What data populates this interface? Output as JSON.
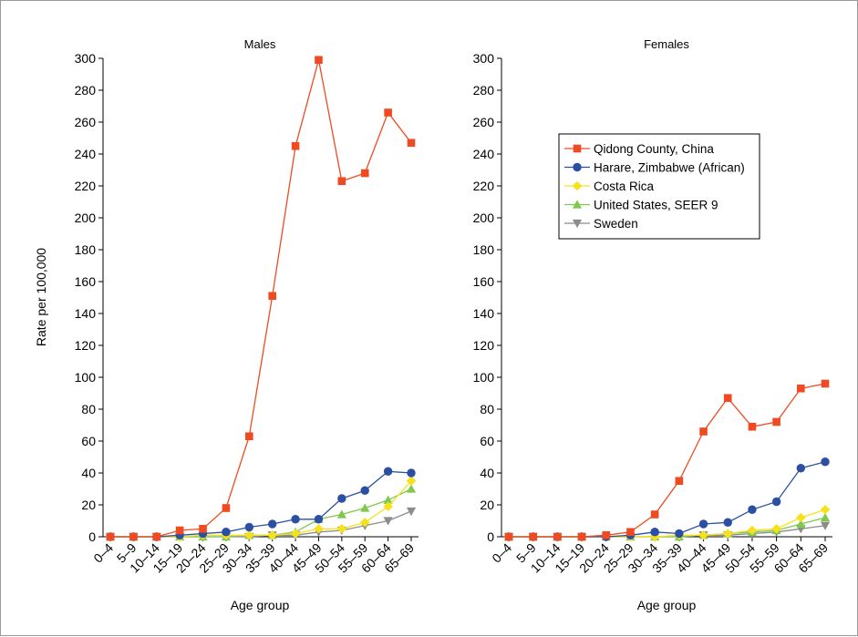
{
  "chart_data": [
    {
      "type": "line",
      "title": "Males",
      "xlabel": "Age group",
      "ylabel": "Rate per 100,000",
      "ylim": [
        0,
        300
      ],
      "yticks": [
        0,
        20,
        40,
        60,
        80,
        100,
        120,
        140,
        160,
        180,
        200,
        220,
        240,
        260,
        280,
        300
      ],
      "grid": false,
      "categories": [
        "0–4",
        "5–9",
        "10–14",
        "15–19",
        "20–24",
        "25–29",
        "30–34",
        "35–39",
        "40–44",
        "45–49",
        "50–54",
        "55–59",
        "60–64",
        "65–69"
      ],
      "series": [
        {
          "name": "Qidong County, China",
          "color": "#f04a23",
          "marker": "square",
          "values": [
            0,
            0,
            0,
            4,
            5,
            18,
            63,
            151,
            245,
            299,
            223,
            228,
            266,
            247
          ]
        },
        {
          "name": "Harare, Zimbabwe (African)",
          "color": "#2a4fa3",
          "marker": "circle",
          "values": [
            0,
            0,
            0,
            1,
            2,
            3,
            6,
            8,
            11,
            11,
            24,
            29,
            41,
            40
          ]
        },
        {
          "name": "Costa Rica",
          "color": "#f6e21c",
          "marker": "diamond",
          "values": [
            0,
            0,
            0,
            0,
            1,
            1,
            1,
            1,
            2,
            5,
            5,
            9,
            19,
            35
          ]
        },
        {
          "name": "United States, SEER 9",
          "color": "#7ec84f",
          "marker": "triangle-up",
          "values": [
            0,
            0,
            0,
            0,
            0,
            0,
            1,
            1,
            3,
            11,
            14,
            18,
            23,
            30
          ]
        },
        {
          "name": "Sweden",
          "color": "#8c8c8c",
          "marker": "triangle-down",
          "values": [
            0,
            0,
            0,
            0,
            0,
            0,
            0,
            1,
            1,
            3,
            4,
            7,
            10,
            16
          ]
        }
      ]
    },
    {
      "type": "line",
      "title": "Females",
      "xlabel": "Age group",
      "ylabel": "",
      "ylim": [
        0,
        300
      ],
      "yticks": [
        0,
        20,
        40,
        60,
        80,
        100,
        120,
        140,
        160,
        180,
        200,
        220,
        240,
        260,
        280,
        300
      ],
      "grid": false,
      "legend": "top-right",
      "categories": [
        "0–4",
        "5–9",
        "10–14",
        "15–19",
        "20–24",
        "25–29",
        "30–34",
        "35–39",
        "40–44",
        "45–49",
        "50–54",
        "55–59",
        "60–64",
        "65–69"
      ],
      "series": [
        {
          "name": "Qidong County, China",
          "color": "#f04a23",
          "marker": "square",
          "values": [
            0,
            0,
            0,
            0,
            1,
            3,
            14,
            35,
            66,
            87,
            69,
            72,
            93,
            96
          ]
        },
        {
          "name": "Harare, Zimbabwe (African)",
          "color": "#2a4fa3",
          "marker": "circle",
          "values": [
            0,
            0,
            0,
            0,
            0,
            1,
            3,
            2,
            8,
            9,
            17,
            22,
            43,
            47
          ]
        },
        {
          "name": "Costa Rica",
          "color": "#f6e21c",
          "marker": "diamond",
          "values": [
            0,
            0,
            0,
            0,
            0,
            0,
            0,
            1,
            1,
            2,
            4,
            5,
            12,
            17
          ]
        },
        {
          "name": "United States, SEER 9",
          "color": "#7ec84f",
          "marker": "triangle-up",
          "values": [
            0,
            0,
            0,
            0,
            0,
            0,
            0,
            0,
            1,
            2,
            3,
            4,
            8,
            12
          ]
        },
        {
          "name": "Sweden",
          "color": "#8c8c8c",
          "marker": "triangle-down",
          "values": [
            0,
            0,
            0,
            0,
            0,
            0,
            0,
            0,
            1,
            1,
            2,
            3,
            5,
            7
          ]
        }
      ]
    }
  ]
}
